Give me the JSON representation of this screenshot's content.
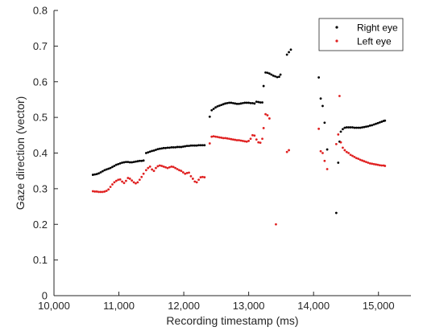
{
  "chart_data": {
    "type": "scatter",
    "title": "",
    "xlabel": "Recording timestamp (ms)",
    "ylabel": "Gaze direction (vector)",
    "xlim": [
      10000,
      15500
    ],
    "ylim": [
      0,
      0.8
    ],
    "xticks": [
      10000,
      11000,
      12000,
      13000,
      14000,
      15000
    ],
    "xtick_labels": [
      "10,000",
      "11,000",
      "12,000",
      "13,000",
      "14,000",
      "15,000"
    ],
    "yticks": [
      0,
      0.1,
      0.2,
      0.3,
      0.4,
      0.5,
      0.6,
      0.7,
      0.8
    ],
    "ytick_labels": [
      "0",
      "0.1",
      "0.2",
      "0.3",
      "0.4",
      "0.5",
      "0.6",
      "0.7",
      "0.8"
    ],
    "grid": false,
    "legend_position": "top-right",
    "series": [
      {
        "name": "Right eye",
        "color": "#000000",
        "x": [
          10600,
          10630,
          10660,
          10690,
          10720,
          10750,
          10780,
          10810,
          10840,
          10870,
          10900,
          10930,
          10960,
          10990,
          11020,
          11050,
          11080,
          11110,
          11140,
          11170,
          11200,
          11230,
          11260,
          11290,
          11320,
          11350,
          11380,
          11420,
          11450,
          11480,
          11510,
          11540,
          11570,
          11600,
          11630,
          11660,
          11690,
          11720,
          11750,
          11780,
          11810,
          11840,
          11870,
          11900,
          11930,
          11960,
          11990,
          12020,
          12050,
          12080,
          12110,
          12140,
          12170,
          12200,
          12230,
          12260,
          12290,
          12320,
          12400,
          12430,
          12460,
          12490,
          12520,
          12550,
          12580,
          12610,
          12640,
          12670,
          12700,
          12730,
          12760,
          12790,
          12820,
          12850,
          12880,
          12910,
          12940,
          12970,
          13000,
          13030,
          13060,
          13090,
          13120,
          13150,
          13180,
          13210,
          13230,
          13260,
          13290,
          13320,
          13350,
          13380,
          13410,
          13440,
          13470,
          13490,
          13590,
          13620,
          13650,
          14080,
          14110,
          14140,
          14170,
          14210,
          14350,
          14380,
          14400,
          14420,
          14450,
          14480,
          14510,
          14540,
          14570,
          14600,
          14630,
          14660,
          14690,
          14720,
          14750,
          14780,
          14810,
          14840,
          14870,
          14900,
          14930,
          14960,
          14990,
          15020,
          15050,
          15080,
          15100
        ],
        "y": [
          0.339,
          0.34,
          0.341,
          0.343,
          0.346,
          0.349,
          0.352,
          0.354,
          0.356,
          0.358,
          0.361,
          0.364,
          0.367,
          0.369,
          0.371,
          0.373,
          0.374,
          0.375,
          0.375,
          0.374,
          0.374,
          0.375,
          0.376,
          0.377,
          0.378,
          0.378,
          0.379,
          0.4,
          0.402,
          0.404,
          0.406,
          0.407,
          0.409,
          0.411,
          0.412,
          0.413,
          0.414,
          0.414,
          0.415,
          0.415,
          0.416,
          0.416,
          0.416,
          0.417,
          0.417,
          0.417,
          0.418,
          0.419,
          0.42,
          0.42,
          0.421,
          0.421,
          0.421,
          0.421,
          0.422,
          0.422,
          0.422,
          0.422,
          0.502,
          0.52,
          0.524,
          0.528,
          0.531,
          0.533,
          0.535,
          0.537,
          0.539,
          0.54,
          0.541,
          0.541,
          0.54,
          0.539,
          0.538,
          0.538,
          0.539,
          0.54,
          0.541,
          0.541,
          0.541,
          0.54,
          0.54,
          0.539,
          0.544,
          0.543,
          0.542,
          0.542,
          0.588,
          0.626,
          0.625,
          0.623,
          0.62,
          0.617,
          0.615,
          0.613,
          0.614,
          0.62,
          0.676,
          0.683,
          0.69,
          0.612,
          0.553,
          0.532,
          0.485,
          0.41,
          0.232,
          0.373,
          0.432,
          0.46,
          0.467,
          0.471,
          0.472,
          0.472,
          0.472,
          0.472,
          0.471,
          0.471,
          0.471,
          0.471,
          0.472,
          0.473,
          0.474,
          0.475,
          0.477,
          0.478,
          0.48,
          0.482,
          0.484,
          0.486,
          0.488,
          0.49,
          0.491
        ]
      },
      {
        "name": "Left eye",
        "color": "#e02020",
        "x": [
          10600,
          10630,
          10660,
          10690,
          10720,
          10750,
          10780,
          10810,
          10840,
          10870,
          10900,
          10930,
          10960,
          10990,
          11020,
          11050,
          11080,
          11110,
          11140,
          11170,
          11200,
          11230,
          11260,
          11290,
          11320,
          11350,
          11380,
          11420,
          11450,
          11480,
          11510,
          11540,
          11570,
          11600,
          11630,
          11660,
          11690,
          11720,
          11750,
          11780,
          11810,
          11840,
          11870,
          11900,
          11930,
          11960,
          11990,
          12020,
          12050,
          12080,
          12110,
          12140,
          12170,
          12200,
          12230,
          12260,
          12290,
          12320,
          12400,
          12430,
          12460,
          12490,
          12520,
          12550,
          12580,
          12610,
          12640,
          12670,
          12700,
          12730,
          12760,
          12790,
          12820,
          12850,
          12880,
          12910,
          12940,
          12970,
          13000,
          13030,
          13060,
          13090,
          13120,
          13150,
          13180,
          13210,
          13230,
          13260,
          13290,
          13320,
          13420,
          13590,
          13620,
          14080,
          14110,
          14140,
          14170,
          14210,
          14350,
          14380,
          14400,
          14420,
          14450,
          14480,
          14510,
          14540,
          14570,
          14600,
          14630,
          14660,
          14690,
          14720,
          14750,
          14780,
          14810,
          14840,
          14870,
          14900,
          14930,
          14960,
          14990,
          15020,
          15050,
          15080,
          15100
        ],
        "y": [
          0.293,
          0.292,
          0.292,
          0.291,
          0.291,
          0.291,
          0.292,
          0.294,
          0.298,
          0.305,
          0.312,
          0.318,
          0.322,
          0.325,
          0.326,
          0.32,
          0.316,
          0.322,
          0.33,
          0.328,
          0.323,
          0.318,
          0.315,
          0.318,
          0.325,
          0.333,
          0.342,
          0.352,
          0.358,
          0.362,
          0.354,
          0.35,
          0.358,
          0.363,
          0.365,
          0.364,
          0.362,
          0.36,
          0.358,
          0.36,
          0.362,
          0.361,
          0.358,
          0.355,
          0.352,
          0.35,
          0.346,
          0.342,
          0.344,
          0.345,
          0.335,
          0.328,
          0.32,
          0.318,
          0.325,
          0.332,
          0.333,
          0.332,
          0.427,
          0.446,
          0.447,
          0.446,
          0.445,
          0.444,
          0.443,
          0.442,
          0.442,
          0.441,
          0.44,
          0.439,
          0.438,
          0.437,
          0.436,
          0.436,
          0.435,
          0.434,
          0.433,
          0.432,
          0.434,
          0.44,
          0.45,
          0.449,
          0.438,
          0.43,
          0.429,
          0.44,
          0.47,
          0.509,
          0.506,
          0.497,
          0.2,
          0.403,
          0.408,
          0.468,
          0.405,
          0.4,
          0.378,
          0.355,
          0.425,
          0.452,
          0.56,
          0.43,
          0.415,
          0.408,
          0.403,
          0.4,
          0.395,
          0.392,
          0.389,
          0.386,
          0.384,
          0.381,
          0.379,
          0.377,
          0.375,
          0.373,
          0.371,
          0.37,
          0.369,
          0.368,
          0.367,
          0.366,
          0.365,
          0.365,
          0.364
        ]
      }
    ]
  }
}
